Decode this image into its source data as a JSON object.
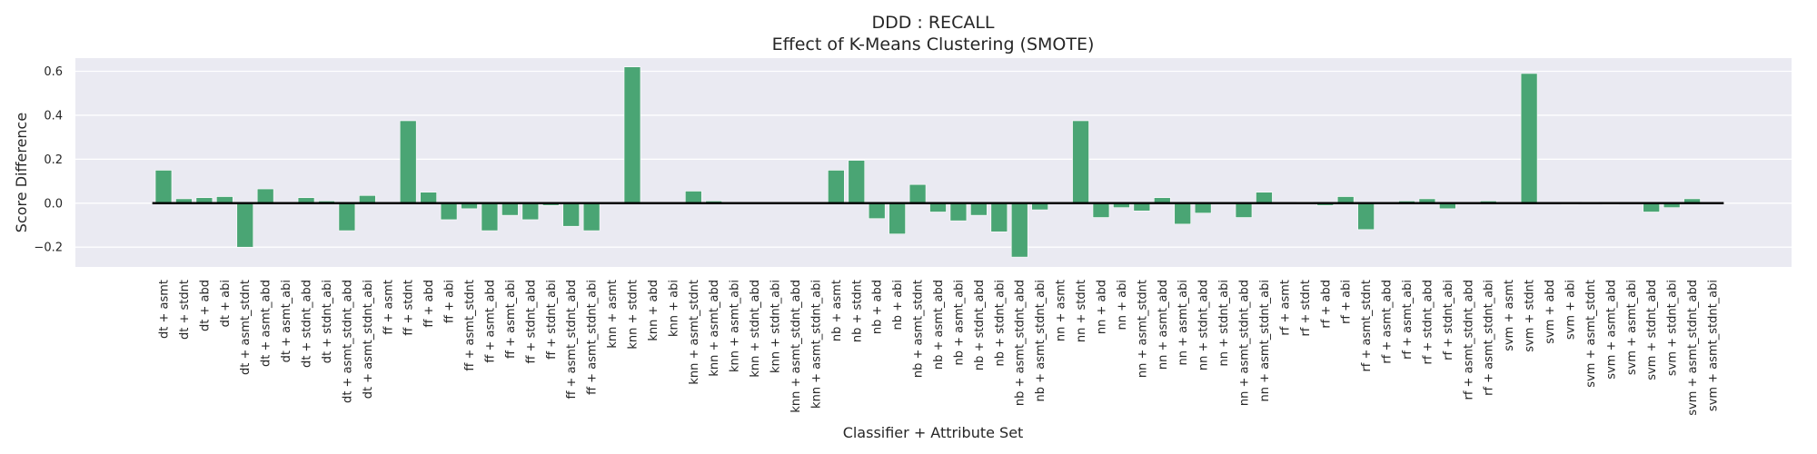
{
  "chart_data": {
    "type": "bar",
    "title": "DDD : RECALL",
    "subtitle": "Effect of K-Means Clustering (SMOTE)",
    "xlabel": "Classifier + Attribute Set",
    "ylabel": "Score Difference",
    "ylim": [
      -0.29,
      0.66
    ],
    "yticks": [
      -0.2,
      0.0,
      0.2,
      0.4,
      0.6
    ],
    "ytick_labels": [
      "−0.2",
      "0.0",
      "0.2",
      "0.4",
      "0.6"
    ],
    "grid": true,
    "legend": "none",
    "bar_color": "#4aa574",
    "background_color": "#eaeaf2",
    "zero_line_color": "#000000",
    "categories": [
      "dt + asmt",
      "dt + stdnt",
      "dt + abd",
      "dt + abi",
      "dt + asmt_stdnt",
      "dt + asmt_abd",
      "dt + asmt_abi",
      "dt + stdnt_abd",
      "dt + stdnt_abi",
      "dt + asmt_stdnt_abd",
      "dt + asmt_stdnt_abi",
      "ff + asmt",
      "ff + stdnt",
      "ff + abd",
      "ff + abi",
      "ff + asmt_stdnt",
      "ff + asmt_abd",
      "ff + asmt_abi",
      "ff + stdnt_abd",
      "ff + stdnt_abi",
      "ff + asmt_stdnt_abd",
      "ff + asmt_stdnt_abi",
      "knn + asmt",
      "knn + stdnt",
      "knn + abd",
      "knn + abi",
      "knn + asmt_stdnt",
      "knn + asmt_abd",
      "knn + asmt_abi",
      "knn + stdnt_abd",
      "knn + stdnt_abi",
      "knn + asmt_stdnt_abd",
      "knn + asmt_stdnt_abi",
      "nb + asmt",
      "nb + stdnt",
      "nb + abd",
      "nb + abi",
      "nb + asmt_stdnt",
      "nb + asmt_abd",
      "nb + asmt_abi",
      "nb + stdnt_abd",
      "nb + stdnt_abi",
      "nb + asmt_stdnt_abd",
      "nb + asmt_stdnt_abi",
      "nn + asmt",
      "nn + stdnt",
      "nn + abd",
      "nn + abi",
      "nn + asmt_stdnt",
      "nn + asmt_abd",
      "nn + asmt_abi",
      "nn + stdnt_abd",
      "nn + stdnt_abi",
      "nn + asmt_stdnt_abd",
      "nn + asmt_stdnt_abi",
      "rf + asmt",
      "rf + stdnt",
      "rf + abd",
      "rf + abi",
      "rf + asmt_stdnt",
      "rf + asmt_abd",
      "rf + asmt_abi",
      "rf + stdnt_abd",
      "rf + stdnt_abi",
      "rf + asmt_stdnt_abd",
      "rf + asmt_stdnt_abi",
      "svm + asmt",
      "svm + stdnt",
      "svm + abd",
      "svm + abi",
      "svm + asmt_stdnt",
      "svm + asmt_abd",
      "svm + asmt_abi",
      "svm + stdnt_abd",
      "svm + stdnt_abi",
      "svm + asmt_stdnt_abd",
      "svm + asmt_stdnt_abi"
    ],
    "values": [
      0.15,
      0.02,
      0.025,
      0.03,
      -0.2,
      0.065,
      0.0,
      0.025,
      0.01,
      -0.125,
      0.035,
      0.0,
      0.375,
      0.05,
      -0.075,
      -0.025,
      -0.125,
      -0.055,
      -0.075,
      -0.01,
      -0.105,
      -0.125,
      0.0,
      0.62,
      0.0,
      0.0,
      0.055,
      0.01,
      0.0,
      0.0,
      0.0,
      0.0,
      0.0,
      0.15,
      0.195,
      -0.07,
      -0.14,
      0.085,
      -0.04,
      -0.08,
      -0.055,
      -0.13,
      -0.245,
      -0.03,
      0.0,
      0.375,
      -0.065,
      -0.02,
      -0.035,
      0.025,
      -0.095,
      -0.045,
      0.0,
      -0.065,
      0.05,
      0.0,
      0.005,
      -0.01,
      0.03,
      -0.12,
      0.0,
      0.01,
      0.02,
      -0.025,
      0.0,
      0.01,
      0.0,
      0.59,
      0.0,
      -0.005,
      0.005,
      -0.005,
      0.0,
      -0.04,
      -0.02,
      0.02,
      0.0
    ]
  }
}
